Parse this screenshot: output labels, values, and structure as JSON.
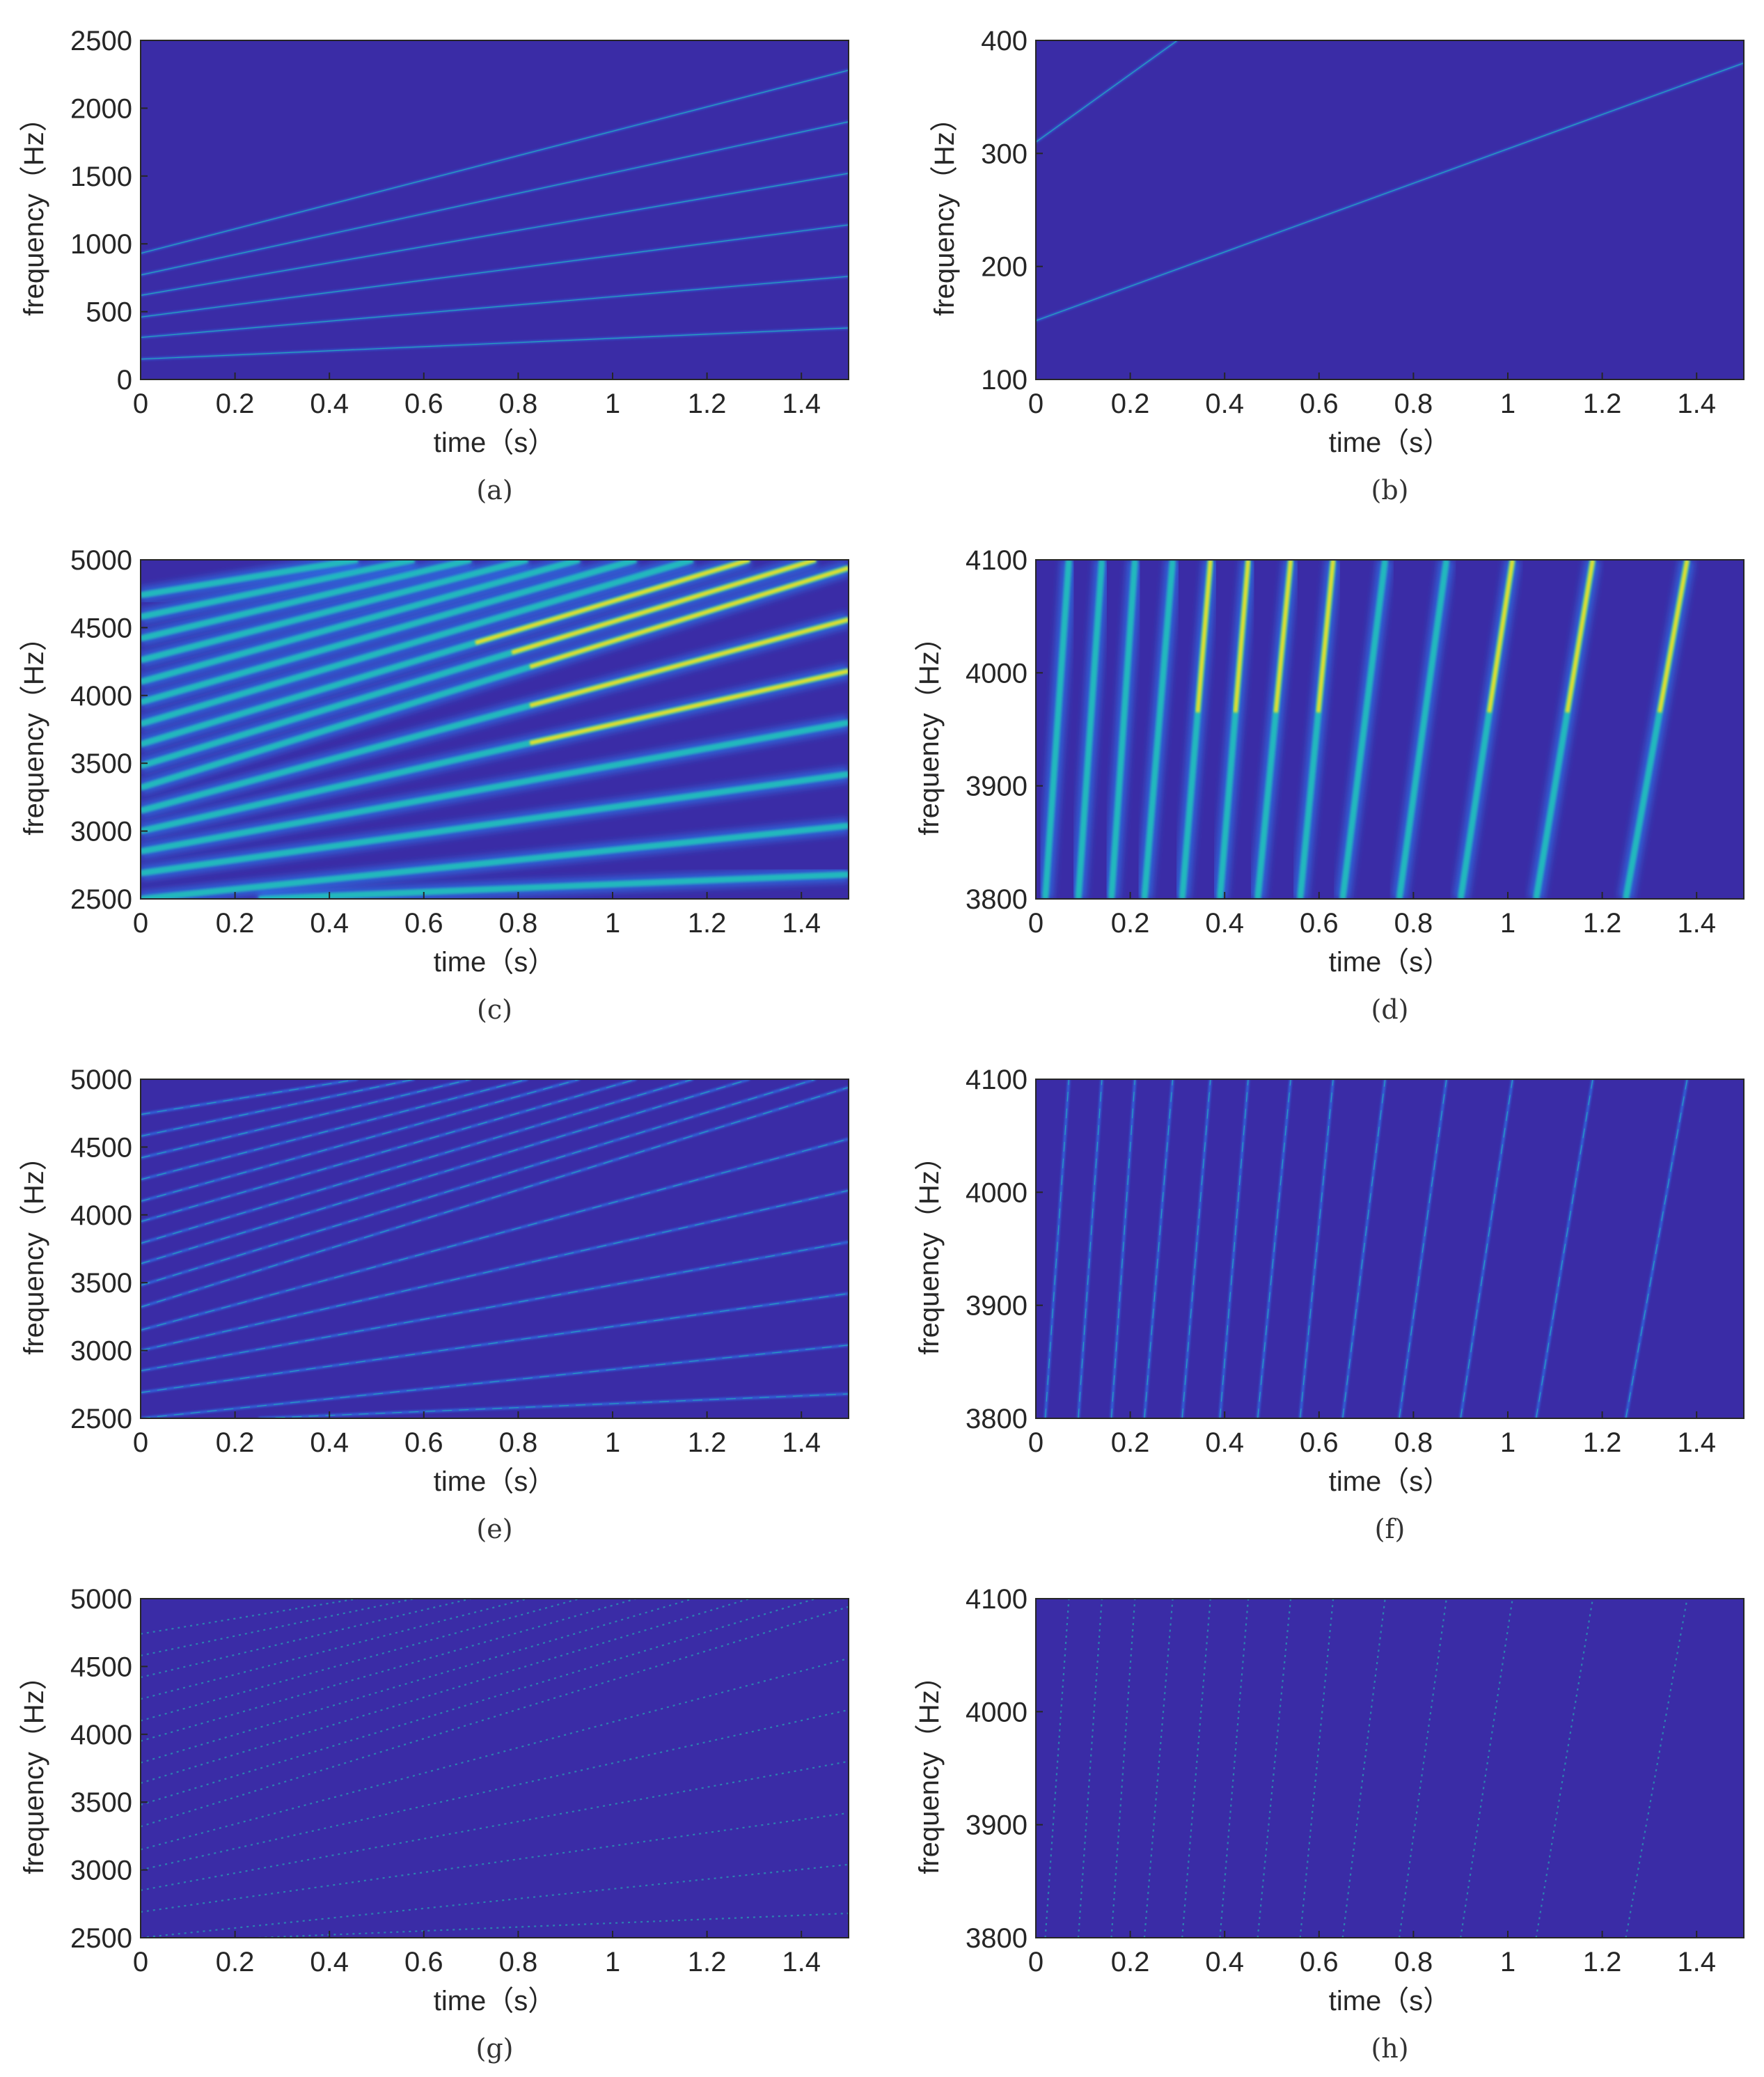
{
  "figure": {
    "background_color": "#3a2ca6",
    "ridge_colors": [
      "#2a8cff",
      "#21c8b8",
      "#f5e21c"
    ]
  },
  "chart_data": [
    {
      "id": "a",
      "type": "heatmap",
      "caption": "(a)",
      "xlabel": "time（s）",
      "ylabel": "frequency（Hz）",
      "xlim": [
        0,
        1.5
      ],
      "ylim": [
        0,
        2500
      ],
      "xticks": [
        "0",
        "0.2",
        "0.4",
        "0.6",
        "0.8",
        "1",
        "1.2",
        "1.4"
      ],
      "yticks": [
        "0",
        "500",
        "1000",
        "1500",
        "2000",
        "2500"
      ],
      "style": "sparse",
      "ridges": [
        {
          "x": [
            0,
            1.5
          ],
          "y": [
            150,
            380
          ]
        },
        {
          "x": [
            0,
            1.5
          ],
          "y": [
            310,
            760
          ]
        },
        {
          "x": [
            0,
            1.5
          ],
          "y": [
            460,
            1140
          ]
        },
        {
          "x": [
            0,
            1.5
          ],
          "y": [
            620,
            1520
          ]
        },
        {
          "x": [
            0,
            1.5
          ],
          "y": [
            770,
            1900
          ]
        },
        {
          "x": [
            0,
            1.5
          ],
          "y": [
            930,
            2280
          ]
        }
      ]
    },
    {
      "id": "b",
      "type": "heatmap",
      "caption": "(b)",
      "xlabel": "time（s）",
      "ylabel": "frequency（Hz）",
      "xlim": [
        0,
        1.5
      ],
      "ylim": [
        100,
        400
      ],
      "xticks": [
        "0",
        "0.2",
        "0.4",
        "0.6",
        "0.8",
        "1",
        "1.2",
        "1.4"
      ],
      "yticks": [
        "100",
        "200",
        "300",
        "400"
      ],
      "style": "sparse",
      "ridges": [
        {
          "x": [
            0,
            1.5
          ],
          "y": [
            152,
            380
          ]
        },
        {
          "x": [
            0,
            0.3
          ],
          "y": [
            310,
            400
          ]
        }
      ]
    },
    {
      "id": "c",
      "type": "heatmap",
      "caption": "(c)",
      "xlabel": "time（s）",
      "ylabel": "frequency（Hz）",
      "xlim": [
        0,
        1.5
      ],
      "ylim": [
        2500,
        5000
      ],
      "xticks": [
        "0",
        "0.2",
        "0.4",
        "0.6",
        "0.8",
        "1",
        "1.2",
        "1.4"
      ],
      "yticks": [
        "2500",
        "3000",
        "3500",
        "4000",
        "4500",
        "5000"
      ],
      "style": "smooth-wide",
      "ridges": [
        {
          "x": [
            0.25,
            1.5
          ],
          "y": [
            2500,
            2680
          ]
        },
        {
          "x": [
            0,
            1.5
          ],
          "y": [
            2500,
            3040
          ]
        },
        {
          "x": [
            0,
            1.5
          ],
          "y": [
            2690,
            3420
          ]
        },
        {
          "x": [
            0,
            1.5
          ],
          "y": [
            2850,
            3800
          ]
        },
        {
          "x": [
            0,
            1.5
          ],
          "y": [
            3000,
            4180
          ]
        },
        {
          "x": [
            0,
            1.5
          ],
          "y": [
            3150,
            4560
          ]
        },
        {
          "x": [
            0,
            1.5
          ],
          "y": [
            3320,
            4940
          ]
        },
        {
          "x": [
            0,
            1.43
          ],
          "y": [
            3480,
            5000
          ]
        },
        {
          "x": [
            0,
            1.29
          ],
          "y": [
            3640,
            5000
          ]
        },
        {
          "x": [
            0,
            1.17
          ],
          "y": [
            3790,
            5000
          ]
        },
        {
          "x": [
            0,
            1.05
          ],
          "y": [
            3950,
            5000
          ]
        },
        {
          "x": [
            0,
            0.93
          ],
          "y": [
            4100,
            5000
          ]
        },
        {
          "x": [
            0,
            0.82
          ],
          "y": [
            4260,
            5000
          ]
        },
        {
          "x": [
            0,
            0.7
          ],
          "y": [
            4420,
            5000
          ]
        },
        {
          "x": [
            0,
            0.58
          ],
          "y": [
            4580,
            5000
          ]
        },
        {
          "x": [
            0,
            0.46
          ],
          "y": [
            4740,
            5000
          ]
        }
      ]
    },
    {
      "id": "d",
      "type": "heatmap",
      "caption": "(d)",
      "xlabel": "time（s）",
      "ylabel": "frequency（Hz）",
      "xlim": [
        0,
        1.5
      ],
      "ylim": [
        3800,
        4100
      ],
      "xticks": [
        "0",
        "0.2",
        "0.4",
        "0.6",
        "0.8",
        "1",
        "1.2",
        "1.4"
      ],
      "yticks": [
        "3800",
        "3900",
        "4000",
        "4100"
      ],
      "style": "smooth-wide",
      "ridges": [
        {
          "x": [
            0.02,
            0.07
          ],
          "y": [
            3800,
            4100
          ]
        },
        {
          "x": [
            0.09,
            0.14
          ],
          "y": [
            3800,
            4100
          ]
        },
        {
          "x": [
            0.16,
            0.21
          ],
          "y": [
            3800,
            4100
          ]
        },
        {
          "x": [
            0.23,
            0.29
          ],
          "y": [
            3800,
            4100
          ]
        },
        {
          "x": [
            0.31,
            0.37
          ],
          "y": [
            3800,
            4100
          ]
        },
        {
          "x": [
            0.39,
            0.45
          ],
          "y": [
            3800,
            4100
          ]
        },
        {
          "x": [
            0.47,
            0.54
          ],
          "y": [
            3800,
            4100
          ]
        },
        {
          "x": [
            0.56,
            0.63
          ],
          "y": [
            3800,
            4100
          ]
        },
        {
          "x": [
            0.65,
            0.74
          ],
          "y": [
            3800,
            4100
          ]
        },
        {
          "x": [
            0.77,
            0.87
          ],
          "y": [
            3800,
            4100
          ]
        },
        {
          "x": [
            0.9,
            1.01
          ],
          "y": [
            3800,
            4100
          ]
        },
        {
          "x": [
            1.06,
            1.18
          ],
          "y": [
            3800,
            4100
          ]
        },
        {
          "x": [
            1.25,
            1.38
          ],
          "y": [
            3800,
            4100
          ]
        }
      ]
    },
    {
      "id": "e",
      "type": "heatmap",
      "caption": "(e)",
      "xlabel": "time（s）",
      "ylabel": "frequency（Hz）",
      "xlim": [
        0,
        1.5
      ],
      "ylim": [
        2500,
        5000
      ],
      "xticks": [
        "0",
        "0.2",
        "0.4",
        "0.6",
        "0.8",
        "1",
        "1.2",
        "1.4"
      ],
      "yticks": [
        "2500",
        "3000",
        "3500",
        "4000",
        "4500",
        "5000"
      ],
      "style": "thin",
      "ridges": [
        {
          "x": [
            0.25,
            1.5
          ],
          "y": [
            2500,
            2680
          ]
        },
        {
          "x": [
            0,
            1.5
          ],
          "y": [
            2500,
            3040
          ]
        },
        {
          "x": [
            0,
            1.5
          ],
          "y": [
            2690,
            3420
          ]
        },
        {
          "x": [
            0,
            1.5
          ],
          "y": [
            2850,
            3800
          ]
        },
        {
          "x": [
            0,
            1.5
          ],
          "y": [
            3000,
            4180
          ]
        },
        {
          "x": [
            0,
            1.5
          ],
          "y": [
            3150,
            4560
          ]
        },
        {
          "x": [
            0,
            1.5
          ],
          "y": [
            3320,
            4940
          ]
        },
        {
          "x": [
            0,
            1.43
          ],
          "y": [
            3480,
            5000
          ]
        },
        {
          "x": [
            0,
            1.29
          ],
          "y": [
            3640,
            5000
          ]
        },
        {
          "x": [
            0,
            1.17
          ],
          "y": [
            3790,
            5000
          ]
        },
        {
          "x": [
            0,
            1.05
          ],
          "y": [
            3950,
            5000
          ]
        },
        {
          "x": [
            0,
            0.93
          ],
          "y": [
            4100,
            5000
          ]
        },
        {
          "x": [
            0,
            0.82
          ],
          "y": [
            4260,
            5000
          ]
        },
        {
          "x": [
            0,
            0.7
          ],
          "y": [
            4420,
            5000
          ]
        },
        {
          "x": [
            0,
            0.58
          ],
          "y": [
            4580,
            5000
          ]
        },
        {
          "x": [
            0,
            0.46
          ],
          "y": [
            4740,
            5000
          ]
        }
      ]
    },
    {
      "id": "f",
      "type": "heatmap",
      "caption": "(f)",
      "xlabel": "time（s）",
      "ylabel": "frequency（Hz）",
      "xlim": [
        0,
        1.5
      ],
      "ylim": [
        3800,
        4100
      ],
      "xticks": [
        "0",
        "0.2",
        "0.4",
        "0.6",
        "0.8",
        "1",
        "1.2",
        "1.4"
      ],
      "yticks": [
        "3800",
        "3900",
        "4000",
        "4100"
      ],
      "style": "thin",
      "ridges": [
        {
          "x": [
            0.02,
            0.07
          ],
          "y": [
            3800,
            4100
          ]
        },
        {
          "x": [
            0.09,
            0.14
          ],
          "y": [
            3800,
            4100
          ]
        },
        {
          "x": [
            0.16,
            0.21
          ],
          "y": [
            3800,
            4100
          ]
        },
        {
          "x": [
            0.23,
            0.29
          ],
          "y": [
            3800,
            4100
          ]
        },
        {
          "x": [
            0.31,
            0.37
          ],
          "y": [
            3800,
            4100
          ]
        },
        {
          "x": [
            0.39,
            0.45
          ],
          "y": [
            3800,
            4100
          ]
        },
        {
          "x": [
            0.47,
            0.54
          ],
          "y": [
            3800,
            4100
          ]
        },
        {
          "x": [
            0.56,
            0.63
          ],
          "y": [
            3800,
            4100
          ]
        },
        {
          "x": [
            0.65,
            0.74
          ],
          "y": [
            3800,
            4100
          ]
        },
        {
          "x": [
            0.77,
            0.87
          ],
          "y": [
            3800,
            4100
          ]
        },
        {
          "x": [
            0.9,
            1.01
          ],
          "y": [
            3800,
            4100
          ]
        },
        {
          "x": [
            1.06,
            1.18
          ],
          "y": [
            3800,
            4100
          ]
        },
        {
          "x": [
            1.25,
            1.38
          ],
          "y": [
            3800,
            4100
          ]
        }
      ]
    },
    {
      "id": "g",
      "type": "heatmap",
      "caption": "(g)",
      "xlabel": "time（s）",
      "ylabel": "frequency（Hz）",
      "xlim": [
        0,
        1.5
      ],
      "ylim": [
        2500,
        5000
      ],
      "xticks": [
        "0",
        "0.2",
        "0.4",
        "0.6",
        "0.8",
        "1",
        "1.2",
        "1.4"
      ],
      "yticks": [
        "2500",
        "3000",
        "3500",
        "4000",
        "4500",
        "5000"
      ],
      "style": "dotted",
      "ridges": [
        {
          "x": [
            0.25,
            1.5
          ],
          "y": [
            2500,
            2680
          ]
        },
        {
          "x": [
            0,
            1.5
          ],
          "y": [
            2500,
            3040
          ]
        },
        {
          "x": [
            0,
            1.5
          ],
          "y": [
            2690,
            3420
          ]
        },
        {
          "x": [
            0,
            1.5
          ],
          "y": [
            2850,
            3800
          ]
        },
        {
          "x": [
            0,
            1.5
          ],
          "y": [
            3000,
            4180
          ]
        },
        {
          "x": [
            0,
            1.5
          ],
          "y": [
            3150,
            4560
          ]
        },
        {
          "x": [
            0,
            1.5
          ],
          "y": [
            3320,
            4940
          ]
        },
        {
          "x": [
            0,
            1.43
          ],
          "y": [
            3480,
            5000
          ]
        },
        {
          "x": [
            0,
            1.29
          ],
          "y": [
            3640,
            5000
          ]
        },
        {
          "x": [
            0,
            1.17
          ],
          "y": [
            3790,
            5000
          ]
        },
        {
          "x": [
            0,
            1.05
          ],
          "y": [
            3950,
            5000
          ]
        },
        {
          "x": [
            0,
            0.93
          ],
          "y": [
            4100,
            5000
          ]
        },
        {
          "x": [
            0,
            0.82
          ],
          "y": [
            4260,
            5000
          ]
        },
        {
          "x": [
            0,
            0.7
          ],
          "y": [
            4420,
            5000
          ]
        },
        {
          "x": [
            0,
            0.58
          ],
          "y": [
            4580,
            5000
          ]
        },
        {
          "x": [
            0,
            0.46
          ],
          "y": [
            4740,
            5000
          ]
        }
      ]
    },
    {
      "id": "h",
      "type": "heatmap",
      "caption": "(h)",
      "xlabel": "time（s）",
      "ylabel": "frequency（Hz）",
      "xlim": [
        0,
        1.5
      ],
      "ylim": [
        3800,
        4100
      ],
      "xticks": [
        "0",
        "0.2",
        "0.4",
        "0.6",
        "0.8",
        "1",
        "1.2",
        "1.4"
      ],
      "yticks": [
        "3800",
        "3900",
        "4000",
        "4100"
      ],
      "style": "dotted",
      "ridges": [
        {
          "x": [
            0.02,
            0.07
          ],
          "y": [
            3800,
            4100
          ]
        },
        {
          "x": [
            0.09,
            0.14
          ],
          "y": [
            3800,
            4100
          ]
        },
        {
          "x": [
            0.16,
            0.21
          ],
          "y": [
            3800,
            4100
          ]
        },
        {
          "x": [
            0.23,
            0.29
          ],
          "y": [
            3800,
            4100
          ]
        },
        {
          "x": [
            0.31,
            0.37
          ],
          "y": [
            3800,
            4100
          ]
        },
        {
          "x": [
            0.39,
            0.45
          ],
          "y": [
            3800,
            4100
          ]
        },
        {
          "x": [
            0.47,
            0.54
          ],
          "y": [
            3800,
            4100
          ]
        },
        {
          "x": [
            0.56,
            0.63
          ],
          "y": [
            3800,
            4100
          ]
        },
        {
          "x": [
            0.65,
            0.74
          ],
          "y": [
            3800,
            4100
          ]
        },
        {
          "x": [
            0.77,
            0.87
          ],
          "y": [
            3800,
            4100
          ]
        },
        {
          "x": [
            0.9,
            1.01
          ],
          "y": [
            3800,
            4100
          ]
        },
        {
          "x": [
            1.06,
            1.18
          ],
          "y": [
            3800,
            4100
          ]
        },
        {
          "x": [
            1.25,
            1.38
          ],
          "y": [
            3800,
            4100
          ]
        }
      ]
    }
  ]
}
